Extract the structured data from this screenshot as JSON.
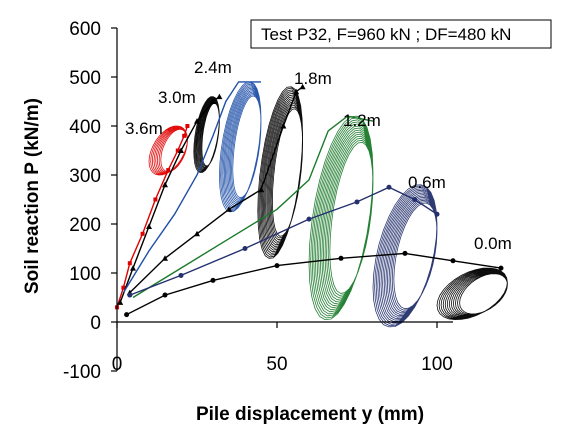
{
  "chart_data": {
    "type": "line",
    "title": "Test P32, F=960 kN ; DF=480 kN",
    "xlabel": "Pile displacement y (mm)",
    "ylabel": "Soil reaction P (kN/m)",
    "xlim": [
      0,
      125
    ],
    "ylim": [
      -100,
      600
    ],
    "xticks": [
      "0",
      "50",
      "100"
    ],
    "yticks": [
      "600",
      "500",
      "400",
      "300",
      "200",
      "100",
      "0",
      "-100"
    ],
    "grid": false,
    "legend": "top-right",
    "series": [
      {
        "name": "3.6m",
        "color": "#e00000",
        "marker": "square",
        "backbone": [
          [
            0,
            30
          ],
          [
            2,
            70
          ],
          [
            4,
            120
          ],
          [
            8,
            180
          ],
          [
            12,
            250
          ],
          [
            16,
            310
          ],
          [
            19,
            350
          ],
          [
            21,
            380
          ],
          [
            22,
            400
          ]
        ],
        "loop": {
          "x_min": 10,
          "x_max": 22,
          "y_min": 300,
          "y_max": 400,
          "cycles": 8
        }
      },
      {
        "name": "3.0m",
        "color": "#000000",
        "marker": "triangle",
        "backbone": [
          [
            1,
            40
          ],
          [
            5,
            110
          ],
          [
            10,
            195
          ],
          [
            15,
            280
          ],
          [
            20,
            350
          ],
          [
            25,
            410
          ],
          [
            30,
            450
          ],
          [
            32,
            460
          ]
        ],
        "loop": {
          "x_min": 24,
          "x_max": 32,
          "y_min": 305,
          "y_max": 460,
          "cycles": 10
        }
      },
      {
        "name": "2.4m",
        "color": "#1f4fa8",
        "marker": "none",
        "backbone": [
          [
            2,
            60
          ],
          [
            10,
            145
          ],
          [
            18,
            220
          ],
          [
            25,
            300
          ],
          [
            30,
            380
          ],
          [
            34,
            450
          ],
          [
            38,
            490
          ],
          [
            45,
            490
          ]
        ],
        "loop": {
          "x_min": 32,
          "x_max": 45,
          "y_min": 225,
          "y_max": 490,
          "cycles": 12
        }
      },
      {
        "name": "1.8m",
        "color": "#000000",
        "marker": "triangle",
        "backbone": [
          [
            4,
            60
          ],
          [
            15,
            130
          ],
          [
            25,
            180
          ],
          [
            35,
            230
          ],
          [
            45,
            270
          ],
          [
            52,
            400
          ],
          [
            56,
            470
          ],
          [
            58,
            480
          ]
        ],
        "loop": {
          "x_min": 44,
          "x_max": 58,
          "y_min": 130,
          "y_max": 480,
          "cycles": 14
        }
      },
      {
        "name": "1.2m",
        "color": "#1a7a2a",
        "marker": "none",
        "backbone": [
          [
            5,
            50
          ],
          [
            20,
            110
          ],
          [
            35,
            170
          ],
          [
            50,
            230
          ],
          [
            60,
            290
          ],
          [
            66,
            390
          ],
          [
            72,
            420
          ],
          [
            80,
            410
          ]
        ],
        "loop": {
          "x_min": 60,
          "x_max": 80,
          "y_min": 5,
          "y_max": 420,
          "cycles": 14
        }
      },
      {
        "name": "0.6m",
        "color": "#24306e",
        "marker": "dot",
        "backbone": [
          [
            4,
            55
          ],
          [
            20,
            95
          ],
          [
            40,
            150
          ],
          [
            60,
            210
          ],
          [
            75,
            245
          ],
          [
            85,
            275
          ],
          [
            93,
            250
          ],
          [
            100,
            220
          ]
        ],
        "loop": {
          "x_min": 80,
          "x_max": 100,
          "y_min": -10,
          "y_max": 280,
          "cycles": 14
        }
      },
      {
        "name": "0.0m",
        "color": "#000000",
        "marker": "dot",
        "backbone": [
          [
            3,
            15
          ],
          [
            15,
            55
          ],
          [
            30,
            85
          ],
          [
            50,
            115
          ],
          [
            70,
            130
          ],
          [
            90,
            140
          ],
          [
            105,
            125
          ],
          [
            120,
            110
          ]
        ],
        "loop": {
          "x_min": 100,
          "x_max": 122,
          "y_min": 5,
          "y_max": 110,
          "cycles": 12
        }
      }
    ]
  }
}
